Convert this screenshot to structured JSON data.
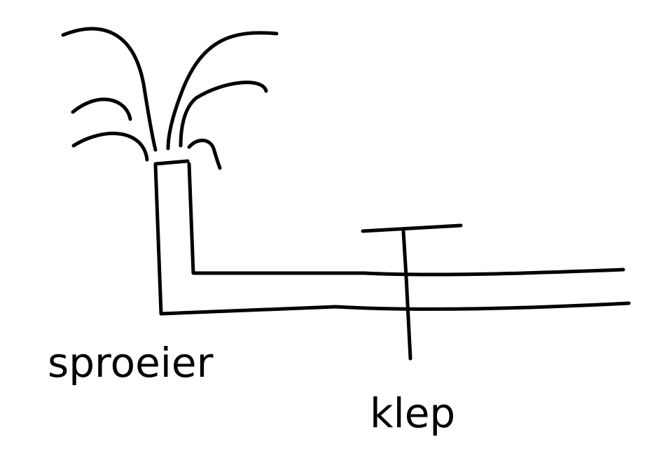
{
  "diagram": {
    "labels": {
      "sprinkler": "sproeier",
      "valve": "klep"
    },
    "ink_color": "#000000",
    "background_color": "#ffffff"
  }
}
